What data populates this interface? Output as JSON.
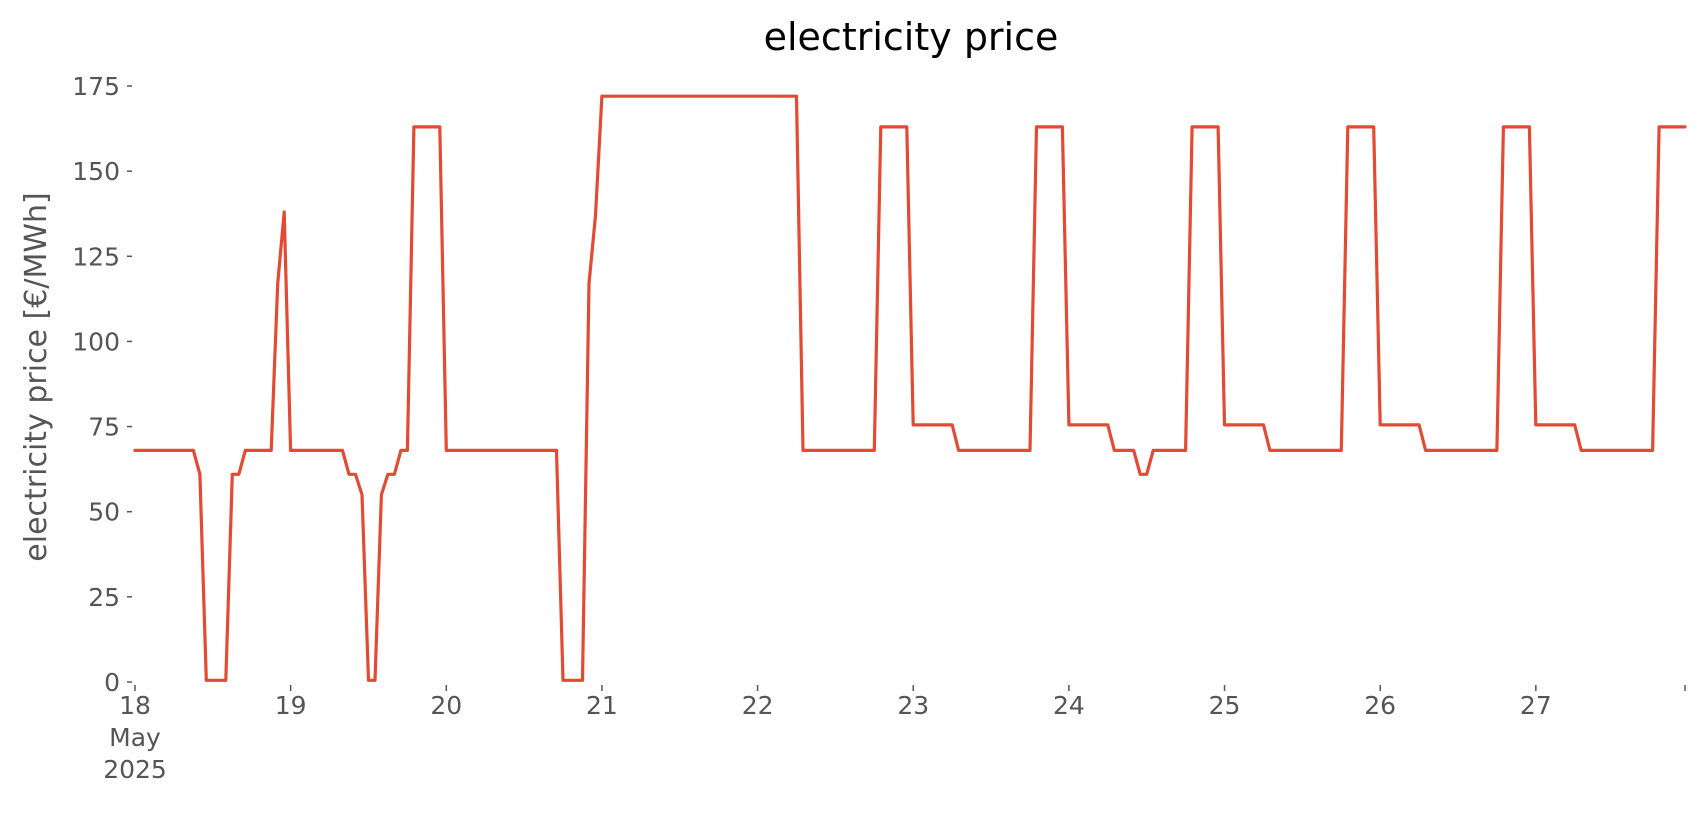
{
  "chart_data": {
    "type": "line",
    "title": "electricity price",
    "xlabel": "",
    "ylabel": "electricity price [€/MWh]",
    "ylim": [
      0,
      175
    ],
    "xlim": [
      "2025-05-18 00:00",
      "2025-05-27 23:00"
    ],
    "y_ticks": [
      0,
      25,
      50,
      75,
      100,
      125,
      150,
      175
    ],
    "y_tick_labels": [
      "0",
      "25",
      "50",
      "75",
      "100",
      "125",
      "150",
      "175"
    ],
    "x_ticks": [
      "2025-05-18",
      "2025-05-19",
      "2025-05-20",
      "2025-05-21",
      "2025-05-22",
      "2025-05-23",
      "2025-05-24",
      "2025-05-25",
      "2025-05-26",
      "2025-05-27"
    ],
    "x_tick_labels": [
      "18\nMay\n2025",
      "19",
      "20",
      "21",
      "22",
      "23",
      "24",
      "25",
      "26",
      "27"
    ],
    "grid": false,
    "colors": {
      "line": "#e24a33"
    },
    "series": [
      {
        "x": [
          "2025-05-18 00:00",
          "2025-05-18 09:00",
          "2025-05-18 10:00",
          "2025-05-18 11:00",
          "2025-05-18 14:00",
          "2025-05-18 15:00",
          "2025-05-18 16:00",
          "2025-05-18 17:00",
          "2025-05-18 21:00",
          "2025-05-18 22:00",
          "2025-05-18 23:00",
          "2025-05-19 00:00",
          "2025-05-19 08:00",
          "2025-05-19 09:00",
          "2025-05-19 10:00",
          "2025-05-19 11:00",
          "2025-05-19 12:00",
          "2025-05-19 13:00",
          "2025-05-19 14:00",
          "2025-05-19 15:00",
          "2025-05-19 16:00",
          "2025-05-19 17:00",
          "2025-05-19 18:00",
          "2025-05-19 19:00",
          "2025-05-19 23:00",
          "2025-05-20 00:00",
          "2025-05-20 08:00",
          "2025-05-20 09:00",
          "2025-05-20 17:00",
          "2025-05-20 18:00",
          "2025-05-20 21:00",
          "2025-05-20 22:00",
          "2025-05-20 23:00",
          "2025-05-21 00:00",
          "2025-05-22 06:00",
          "2025-05-22 07:00",
          "2025-05-22 18:00",
          "2025-05-22 19:00",
          "2025-05-22 23:00",
          "2025-05-23 00:00",
          "2025-05-23 06:00",
          "2025-05-23 07:00",
          "2025-05-23 18:00",
          "2025-05-23 19:00",
          "2025-05-23 23:00",
          "2025-05-24 00:00",
          "2025-05-24 06:00",
          "2025-05-24 07:00",
          "2025-05-24 10:00",
          "2025-05-24 11:00",
          "2025-05-24 12:00",
          "2025-05-24 13:00",
          "2025-05-24 18:00",
          "2025-05-24 19:00",
          "2025-05-24 23:00",
          "2025-05-25 00:00",
          "2025-05-25 06:00",
          "2025-05-25 07:00",
          "2025-05-25 18:00",
          "2025-05-25 19:00",
          "2025-05-25 23:00",
          "2025-05-26 00:00",
          "2025-05-26 06:00",
          "2025-05-26 07:00",
          "2025-05-26 18:00",
          "2025-05-26 19:00",
          "2025-05-26 23:00",
          "2025-05-27 00:00",
          "2025-05-27 06:00",
          "2025-05-27 07:00",
          "2025-05-27 18:00",
          "2025-05-27 19:00",
          "2025-05-27 23:00"
        ],
        "y": [
          68,
          68,
          61,
          0.5,
          0.5,
          61,
          61,
          68,
          68,
          117,
          138,
          68,
          68,
          61,
          61,
          55,
          0.5,
          0.5,
          55,
          61,
          61,
          68,
          68,
          163,
          163,
          68,
          68,
          68,
          68,
          0.5,
          0.5,
          117,
          137,
          172,
          172,
          68,
          68,
          163,
          163,
          75.5,
          75.5,
          68,
          68,
          163,
          163,
          75.5,
          75.5,
          68,
          68,
          61,
          61,
          68,
          68,
          163,
          163,
          75.5,
          75.5,
          68,
          68,
          163,
          163,
          75.5,
          75.5,
          68,
          68,
          163,
          163,
          75.5,
          75.5,
          68,
          68,
          163,
          163
        ]
      }
    ]
  }
}
